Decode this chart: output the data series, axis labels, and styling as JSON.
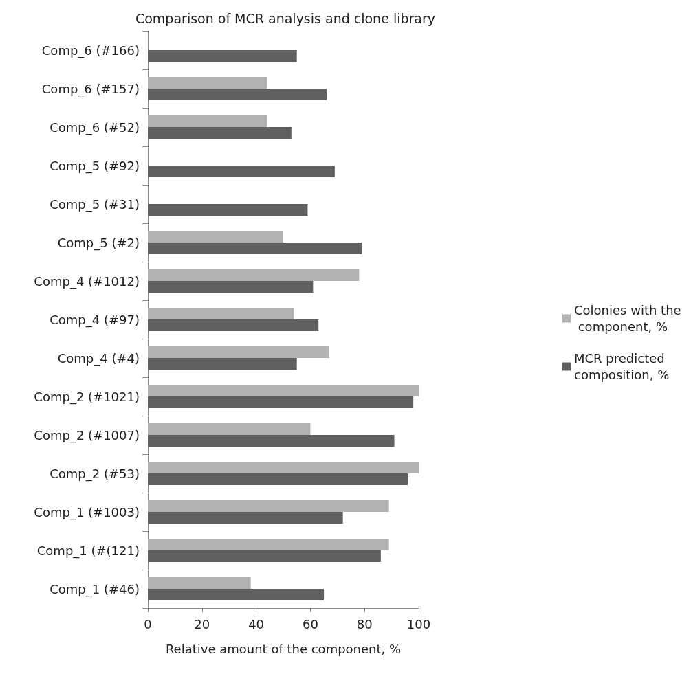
{
  "chart_data": {
    "type": "bar",
    "orientation": "horizontal",
    "title": "Comparison of MCR analysis and clone library",
    "xlabel": "Relative amount of the component, %",
    "categories": [
      "Comp_6 (#166)",
      "Comp_6 (#157)",
      "Comp_6 (#52)",
      "Comp_5 (#92)",
      "Comp_5 (#31)",
      "Comp_5 (#2)",
      "Comp_4 (#1012)",
      "Comp_4 (#97)",
      "Comp_4 (#4)",
      "Comp_2 (#1021)",
      "Comp_2 (#1007)",
      "Comp_2 (#53)",
      "Comp_1 (#1003)",
      "Comp_1 (#(121)",
      "Comp_1 (#46)"
    ],
    "series": [
      {
        "name": "Colonies with the component, %",
        "color": "#b2b2b2",
        "values": [
          null,
          44,
          44,
          null,
          null,
          50,
          78,
          54,
          67,
          100,
          60,
          100,
          89,
          89,
          38
        ]
      },
      {
        "name": "MCR predicted composition, %",
        "color": "#606060",
        "values": [
          55,
          66,
          53,
          69,
          59,
          79,
          61,
          63,
          55,
          98,
          91,
          96,
          72,
          86,
          65
        ]
      }
    ],
    "xlim": [
      0,
      100
    ],
    "xticks": [
      0,
      20,
      40,
      60,
      80,
      100
    ],
    "grid": false,
    "legend": "right"
  }
}
